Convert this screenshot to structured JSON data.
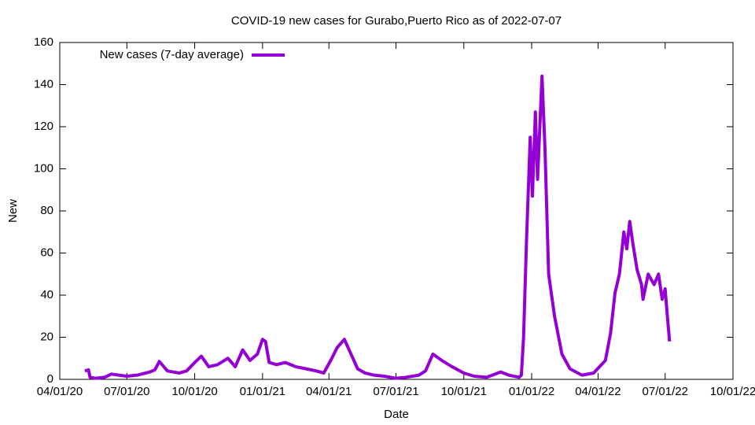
{
  "chart_data": {
    "type": "line",
    "title": "COVID-19 new cases for Gurabo,Puerto Rico as of 2022-07-07",
    "xlabel": "Date",
    "ylabel": "New",
    "legend": "top-left",
    "xlim": [
      "2020-04-01",
      "2022-10-01"
    ],
    "xticks": [
      {
        "value": "2020-04-01",
        "label": "04/01/20"
      },
      {
        "value": "2020-07-01",
        "label": "07/01/20"
      },
      {
        "value": "2020-10-01",
        "label": "10/01/20"
      },
      {
        "value": "2021-01-01",
        "label": "01/01/21"
      },
      {
        "value": "2021-04-01",
        "label": "04/01/21"
      },
      {
        "value": "2021-07-01",
        "label": "07/01/21"
      },
      {
        "value": "2021-10-01",
        "label": "10/01/21"
      },
      {
        "value": "2022-01-01",
        "label": "01/01/22"
      },
      {
        "value": "2022-04-01",
        "label": "04/01/22"
      },
      {
        "value": "2022-07-01",
        "label": "07/01/22"
      },
      {
        "value": "2022-10-01",
        "label": "10/01/22"
      }
    ],
    "ylim": [
      0,
      160
    ],
    "yticks": [
      0,
      20,
      40,
      60,
      80,
      100,
      120,
      140,
      160
    ],
    "x": [
      "2020-05-05",
      "2020-05-10",
      "2020-05-12",
      "2020-05-20",
      "2020-06-01",
      "2020-06-10",
      "2020-06-20",
      "2020-07-01",
      "2020-07-15",
      "2020-08-01",
      "2020-08-08",
      "2020-08-14",
      "2020-08-25",
      "2020-09-10",
      "2020-09-20",
      "2020-10-01",
      "2020-10-10",
      "2020-10-20",
      "2020-11-01",
      "2020-11-15",
      "2020-11-25",
      "2020-12-05",
      "2020-12-15",
      "2020-12-25",
      "2021-01-01",
      "2021-01-05",
      "2021-01-10",
      "2021-01-20",
      "2021-02-01",
      "2021-02-15",
      "2021-03-01",
      "2021-03-15",
      "2021-03-25",
      "2021-04-05",
      "2021-04-12",
      "2021-04-22",
      "2021-05-01",
      "2021-05-10",
      "2021-05-20",
      "2021-06-01",
      "2021-06-15",
      "2021-07-01",
      "2021-07-15",
      "2021-08-01",
      "2021-08-10",
      "2021-08-20",
      "2021-09-01",
      "2021-09-15",
      "2021-10-01",
      "2021-10-15",
      "2021-11-01",
      "2021-11-20",
      "2021-12-01",
      "2021-12-15",
      "2021-12-18",
      "2021-12-21",
      "2021-12-25",
      "2021-12-30",
      "2022-01-02",
      "2022-01-06",
      "2022-01-09",
      "2022-01-15",
      "2022-01-19",
      "2022-01-24",
      "2022-02-01",
      "2022-02-11",
      "2022-02-22",
      "2022-03-10",
      "2022-03-26",
      "2022-04-11",
      "2022-04-18",
      "2022-04-24",
      "2022-04-30",
      "2022-05-06",
      "2022-05-10",
      "2022-05-14",
      "2022-05-18",
      "2022-05-24",
      "2022-05-30",
      "2022-06-01",
      "2022-06-08",
      "2022-06-16",
      "2022-06-22",
      "2022-06-27",
      "2022-07-01",
      "2022-07-04",
      "2022-07-07"
    ],
    "series": [
      {
        "name": "New cases (7-day average)",
        "color": "#9400d3",
        "values": [
          4,
          4.5,
          1,
          0.5,
          1,
          2.5,
          2,
          1.5,
          2,
          3.5,
          4.5,
          8.5,
          4,
          3,
          4,
          8,
          11,
          6,
          7,
          10,
          6,
          14,
          9,
          12,
          19,
          18,
          8,
          7,
          8,
          6,
          5,
          4,
          3,
          10,
          15,
          19,
          12,
          5,
          3,
          2,
          1.5,
          0.5,
          1,
          2,
          4,
          12,
          9,
          6,
          3,
          1.5,
          1,
          3.5,
          2,
          1,
          2,
          20,
          66,
          115,
          87,
          127,
          95,
          144,
          110,
          50,
          30,
          12,
          5,
          2,
          3,
          9,
          22,
          41,
          50,
          70,
          62,
          75,
          65,
          52,
          45,
          38,
          50,
          45,
          50,
          38,
          43,
          30,
          18
        ]
      }
    ]
  }
}
